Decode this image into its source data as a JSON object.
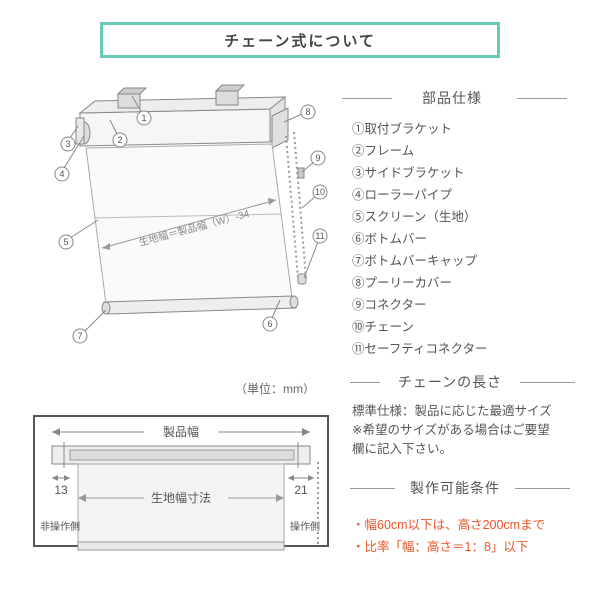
{
  "title": "チェーン式について",
  "sections": {
    "parts_title": "部品仕様",
    "chain_length_title": "チェーンの長さ",
    "conditions_title": "製作可能条件"
  },
  "parts": [
    "①取付ブラケット",
    "②フレーム",
    "③サイドブラケット",
    "④ローラーパイプ",
    "⑤スクリーン（生地）",
    "⑥ボトムバー",
    "⑦ボトムバーキャップ",
    "⑧プーリーカバー",
    "⑨コネクター",
    "⑩チェーン",
    "⑪セーフティコネクター"
  ],
  "chain_length_text": "標準仕様：製品に応じた最適サイズ\n※希望のサイズがある場合はご要望\n欄に記入下さい。",
  "conditions": [
    "・幅60cm以下は、高さ200cmまで",
    "・比率「幅：高さ＝1：8」以下"
  ],
  "unit_label": "（単位：mm）",
  "main_diagram": {
    "callouts": [
      "1",
      "2",
      "3",
      "4",
      "5",
      "6",
      "7",
      "8",
      "9",
      "10",
      "11"
    ],
    "fabric_width_label": "生地幅＝製品幅（W）-34",
    "colors": {
      "stroke": "#888888",
      "fill_light": "#f2f2f2",
      "fill_mid": "#dddddd",
      "chain": "#999999"
    }
  },
  "bottom_diagram": {
    "product_width_label": "製品幅",
    "fabric_width_label": "生地幅寸法",
    "left_dim": "13",
    "right_dim": "21",
    "left_side_label": "非操作側",
    "right_side_label": "操作側",
    "colors": {
      "border": "#555555",
      "stroke": "#888888",
      "fill": "#eeeeee",
      "bg": "#ffffff"
    }
  },
  "palette": {
    "accent": "#6bc9b8",
    "text": "#555555",
    "warning": "#e8572a",
    "rule": "#999999"
  }
}
